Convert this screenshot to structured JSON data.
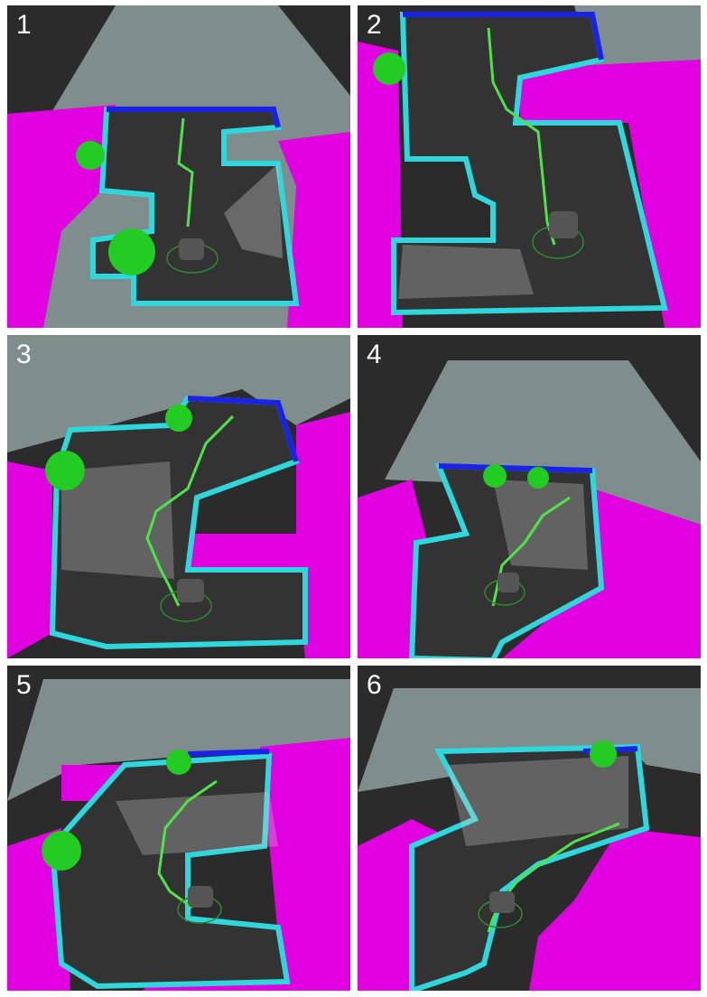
{
  "panels": [
    {
      "label": "1"
    },
    {
      "label": "2"
    },
    {
      "label": "3"
    },
    {
      "label": "4"
    },
    {
      "label": "5"
    },
    {
      "label": "6"
    }
  ],
  "colors": {
    "background": "#2b2b2b",
    "unknown_area": "#7f8e8c",
    "obstacle_inflation": "#e000e0",
    "free_space": "#333333",
    "wall_cyan": "#2fd6dc",
    "wall_blue": "#1a22e6",
    "path": "#4fe34a",
    "goal_sphere": "#22cc22",
    "grid": "#555555",
    "pointcloud": "#cfcfcf"
  }
}
